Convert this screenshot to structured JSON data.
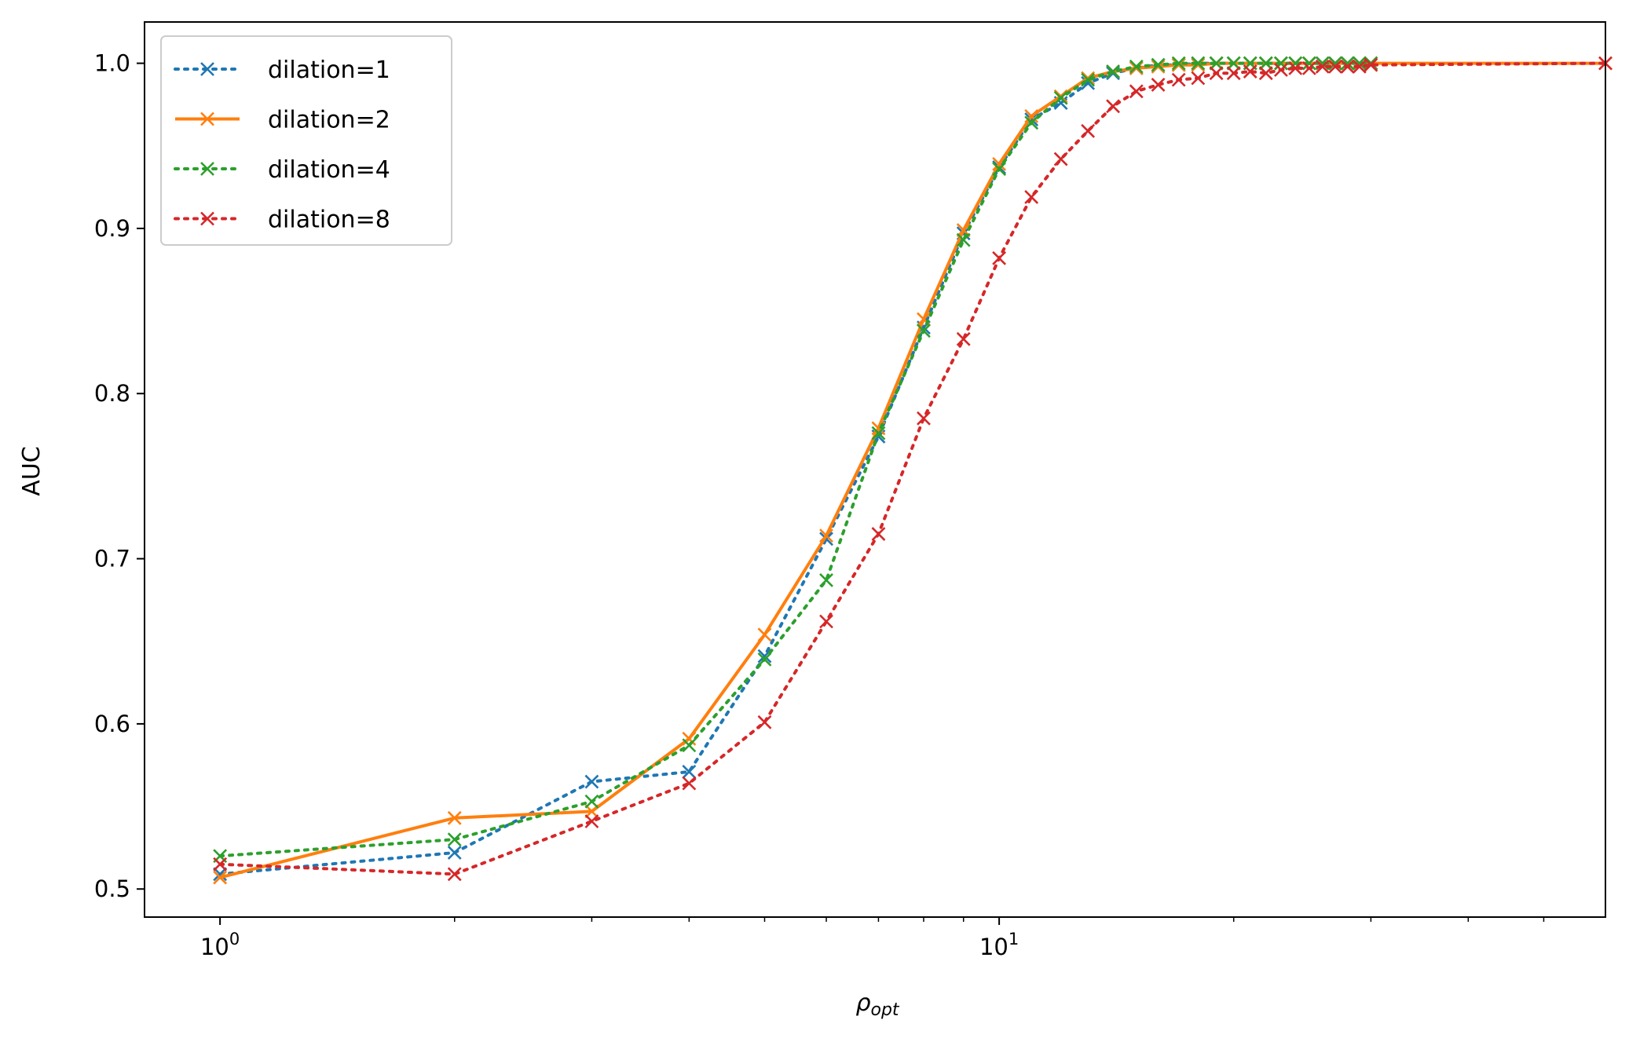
{
  "chart_data": {
    "type": "line",
    "title": "",
    "xlabel": "ρ_opt",
    "xlabel_main": "ρ",
    "xlabel_sub": "opt",
    "ylabel": "AUC",
    "xscale": "log",
    "xlim": [
      0.8,
      60
    ],
    "ylim": [
      0.483,
      1.025
    ],
    "yticks": [
      0.5,
      0.6,
      0.7,
      0.8,
      0.9,
      1.0
    ],
    "ytick_labels": [
      "0.5",
      "0.6",
      "0.7",
      "0.8",
      "0.9",
      "1.0"
    ],
    "xticks_major": [
      1,
      10
    ],
    "xtick_labels": [
      {
        "base": "10",
        "exp": "0"
      },
      {
        "base": "10",
        "exp": "1"
      }
    ],
    "xticks_minor": [
      2,
      3,
      4,
      5,
      6,
      7,
      8,
      9,
      20,
      30,
      40,
      50
    ],
    "grid": false,
    "legend_position": "top-left",
    "series": [
      {
        "name": "dilation=1",
        "color": "#1f77b4",
        "line_style": "dotted",
        "marker": "x",
        "x": [
          1,
          2,
          3,
          4,
          5,
          6,
          7,
          8,
          9,
          10,
          11,
          12,
          13,
          14,
          15,
          16,
          17,
          18,
          19,
          20,
          21,
          22,
          23,
          24,
          25,
          26,
          27,
          28,
          29,
          30
        ],
        "y": [
          0.509,
          0.522,
          0.565,
          0.571,
          0.641,
          0.712,
          0.774,
          0.84,
          0.897,
          0.937,
          0.966,
          0.976,
          0.988,
          0.994,
          0.997,
          0.999,
          0.999,
          1.0,
          1.0,
          1.0,
          1.0,
          1.0,
          1.0,
          1.0,
          1.0,
          1.0,
          1.0,
          1.0,
          1.0,
          1.0
        ]
      },
      {
        "name": "dilation=2",
        "color": "#ff7f0e",
        "line_style": "solid",
        "marker": "x",
        "x": [
          1,
          2,
          3,
          4,
          5,
          6,
          7,
          8,
          9,
          10,
          11,
          12,
          13,
          14,
          15,
          16,
          17,
          18,
          19,
          20,
          21,
          22,
          23,
          24,
          25,
          26,
          27,
          28,
          29,
          30,
          60
        ],
        "y": [
          0.507,
          0.543,
          0.547,
          0.591,
          0.654,
          0.714,
          0.779,
          0.845,
          0.899,
          0.939,
          0.968,
          0.98,
          0.991,
          0.995,
          0.997,
          0.998,
          0.999,
          0.999,
          1.0,
          1.0,
          1.0,
          1.0,
          1.0,
          1.0,
          1.0,
          1.0,
          1.0,
          1.0,
          1.0,
          1.0,
          1.0
        ]
      },
      {
        "name": "dilation=4",
        "color": "#2ca02c",
        "line_style": "dotted",
        "marker": "x",
        "x": [
          1,
          2,
          3,
          4,
          5,
          6,
          7,
          8,
          9,
          10,
          11,
          12,
          13,
          14,
          15,
          16,
          17,
          18,
          19,
          20,
          21,
          22,
          23,
          24,
          25,
          26,
          27,
          28,
          29,
          30
        ],
        "y": [
          0.52,
          0.53,
          0.553,
          0.587,
          0.639,
          0.687,
          0.776,
          0.838,
          0.893,
          0.936,
          0.964,
          0.979,
          0.99,
          0.995,
          0.998,
          0.999,
          1.0,
          1.0,
          1.0,
          1.0,
          1.0,
          1.0,
          1.0,
          1.0,
          1.0,
          1.0,
          1.0,
          1.0,
          1.0,
          1.0
        ]
      },
      {
        "name": "dilation=8",
        "color": "#d62728",
        "line_style": "dotted",
        "marker": "x",
        "x": [
          1,
          2,
          3,
          4,
          5,
          6,
          7,
          8,
          9,
          10,
          11,
          12,
          13,
          14,
          15,
          16,
          17,
          18,
          19,
          20,
          21,
          22,
          23,
          24,
          25,
          26,
          27,
          28,
          29,
          30,
          60
        ],
        "y": [
          0.515,
          0.509,
          0.541,
          0.564,
          0.601,
          0.662,
          0.715,
          0.785,
          0.833,
          0.882,
          0.919,
          0.942,
          0.959,
          0.974,
          0.983,
          0.987,
          0.99,
          0.991,
          0.994,
          0.994,
          0.995,
          0.994,
          0.996,
          0.997,
          0.997,
          0.998,
          0.998,
          0.998,
          0.998,
          0.999,
          1.0
        ]
      }
    ]
  }
}
